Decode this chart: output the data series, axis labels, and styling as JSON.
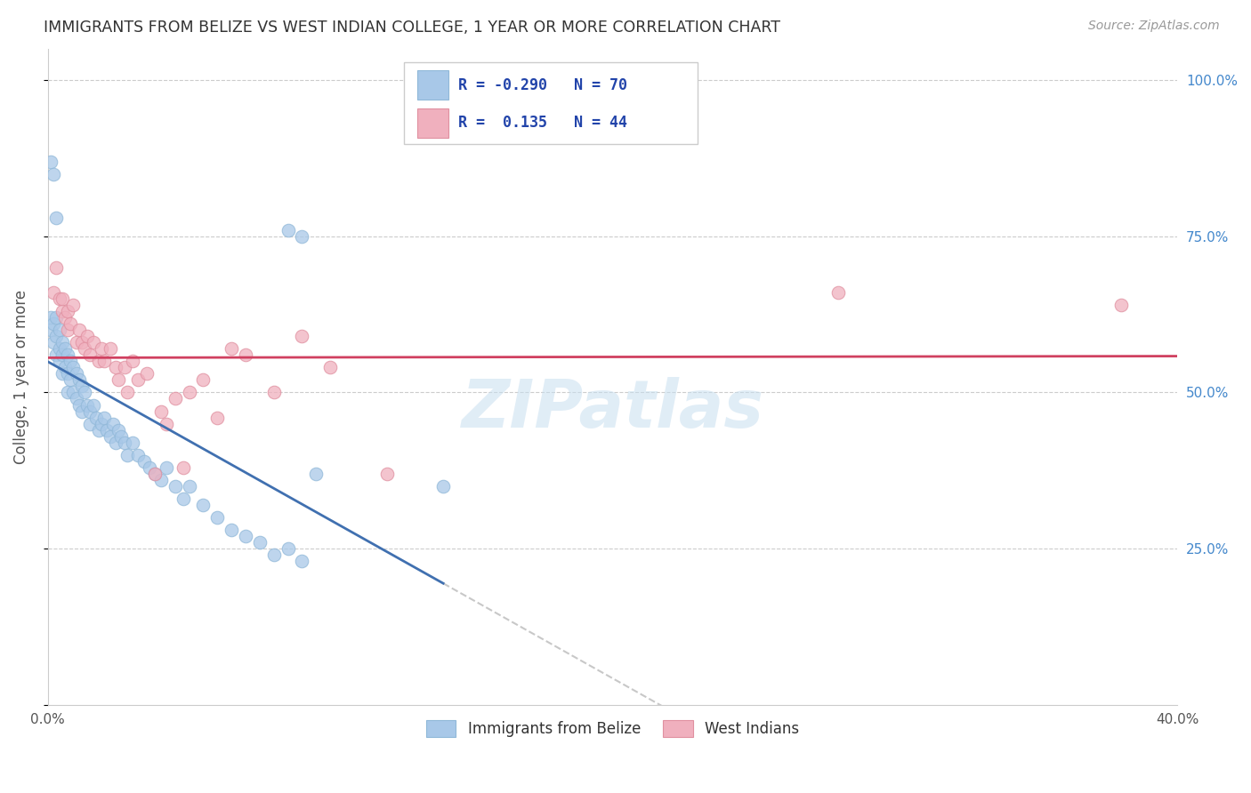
{
  "title": "IMMIGRANTS FROM BELIZE VS WEST INDIAN COLLEGE, 1 YEAR OR MORE CORRELATION CHART",
  "source": "Source: ZipAtlas.com",
  "ylabel": "College, 1 year or more",
  "xlim": [
    0.0,
    0.4
  ],
  "ylim": [
    0.0,
    1.05
  ],
  "belize_color": "#a8c8e8",
  "belize_edge_color": "#90b8d8",
  "belize_line_color": "#4070b0",
  "west_indian_color": "#f0b0be",
  "west_indian_edge_color": "#e090a0",
  "west_indian_line_color": "#d04060",
  "dashed_line_color": "#c8c8c8",
  "R_belize": -0.29,
  "N_belize": 70,
  "R_west_indian": 0.135,
  "N_west_indian": 44,
  "legend_label_belize": "Immigrants from Belize",
  "legend_label_west_indian": "West Indians",
  "watermark": "ZIPatlas",
  "belize_x": [
    0.001,
    0.001,
    0.002,
    0.002,
    0.003,
    0.003,
    0.003,
    0.004,
    0.004,
    0.004,
    0.005,
    0.005,
    0.005,
    0.006,
    0.006,
    0.007,
    0.007,
    0.007,
    0.008,
    0.008,
    0.009,
    0.009,
    0.01,
    0.01,
    0.011,
    0.011,
    0.012,
    0.012,
    0.013,
    0.014,
    0.015,
    0.015,
    0.016,
    0.017,
    0.018,
    0.019,
    0.02,
    0.021,
    0.022,
    0.023,
    0.024,
    0.025,
    0.026,
    0.027,
    0.028,
    0.03,
    0.032,
    0.034,
    0.036,
    0.038,
    0.04,
    0.042,
    0.045,
    0.048,
    0.05,
    0.055,
    0.06,
    0.065,
    0.07,
    0.075,
    0.08,
    0.085,
    0.09,
    0.001,
    0.002,
    0.003,
    0.085,
    0.09,
    0.095,
    0.14
  ],
  "belize_y": [
    0.6,
    0.62,
    0.58,
    0.61,
    0.59,
    0.56,
    0.62,
    0.57,
    0.6,
    0.55,
    0.58,
    0.56,
    0.53,
    0.57,
    0.54,
    0.56,
    0.53,
    0.5,
    0.55,
    0.52,
    0.54,
    0.5,
    0.53,
    0.49,
    0.52,
    0.48,
    0.51,
    0.47,
    0.5,
    0.48,
    0.47,
    0.45,
    0.48,
    0.46,
    0.44,
    0.45,
    0.46,
    0.44,
    0.43,
    0.45,
    0.42,
    0.44,
    0.43,
    0.42,
    0.4,
    0.42,
    0.4,
    0.39,
    0.38,
    0.37,
    0.36,
    0.38,
    0.35,
    0.33,
    0.35,
    0.32,
    0.3,
    0.28,
    0.27,
    0.26,
    0.24,
    0.25,
    0.23,
    0.87,
    0.85,
    0.78,
    0.76,
    0.75,
    0.37,
    0.35
  ],
  "west_indian_x": [
    0.002,
    0.003,
    0.004,
    0.005,
    0.005,
    0.006,
    0.007,
    0.007,
    0.008,
    0.009,
    0.01,
    0.011,
    0.012,
    0.013,
    0.014,
    0.015,
    0.016,
    0.018,
    0.019,
    0.02,
    0.022,
    0.024,
    0.025,
    0.027,
    0.028,
    0.03,
    0.032,
    0.035,
    0.038,
    0.04,
    0.042,
    0.045,
    0.048,
    0.05,
    0.055,
    0.06,
    0.065,
    0.07,
    0.08,
    0.09,
    0.1,
    0.12,
    0.28,
    0.38
  ],
  "west_indian_y": [
    0.66,
    0.7,
    0.65,
    0.63,
    0.65,
    0.62,
    0.6,
    0.63,
    0.61,
    0.64,
    0.58,
    0.6,
    0.58,
    0.57,
    0.59,
    0.56,
    0.58,
    0.55,
    0.57,
    0.55,
    0.57,
    0.54,
    0.52,
    0.54,
    0.5,
    0.55,
    0.52,
    0.53,
    0.37,
    0.47,
    0.45,
    0.49,
    0.38,
    0.5,
    0.52,
    0.46,
    0.57,
    0.56,
    0.5,
    0.59,
    0.54,
    0.37,
    0.66,
    0.64
  ]
}
